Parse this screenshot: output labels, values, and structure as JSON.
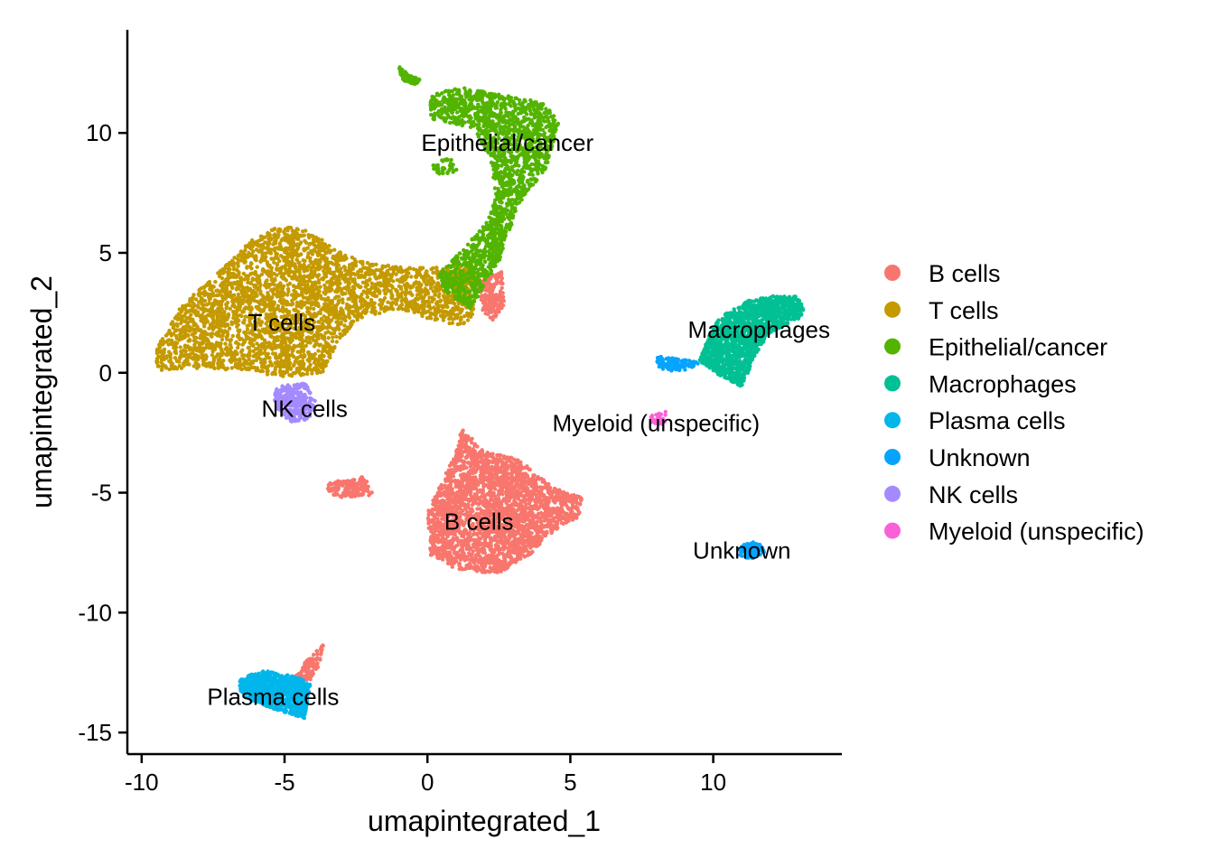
{
  "chart_data": {
    "type": "scatter",
    "title": "",
    "xlabel": "umapintegrated_1",
    "ylabel": "umapintegrated_2",
    "xlim": [
      -10.5,
      14.5
    ],
    "ylim": [
      -15.9,
      14.3
    ],
    "x_ticks": [
      {
        "value": -10,
        "label": "-10"
      },
      {
        "value": -5,
        "label": "-5"
      },
      {
        "value": 0,
        "label": "0"
      },
      {
        "value": 5,
        "label": "5"
      },
      {
        "value": 10,
        "label": "10"
      }
    ],
    "y_ticks": [
      {
        "value": 10,
        "label": "10"
      },
      {
        "value": 5,
        "label": "5"
      },
      {
        "value": 0,
        "label": "0"
      },
      {
        "value": -5,
        "label": "-5"
      },
      {
        "value": -10,
        "label": "-10"
      },
      {
        "value": -15,
        "label": "-15"
      }
    ],
    "grid": false,
    "legend_position": "right",
    "series": [
      {
        "name": "B cells",
        "color": "#F8766D",
        "regions": [
          {
            "shape": "polygon",
            "points": [
              [
                1.2,
                -2.3
              ],
              [
                2.0,
                -3.3
              ],
              [
                3.2,
                -3.6
              ],
              [
                4.4,
                -4.8
              ],
              [
                5.4,
                -5.2
              ],
              [
                5.3,
                -6.0
              ],
              [
                4.2,
                -6.8
              ],
              [
                3.6,
                -7.6
              ],
              [
                2.4,
                -8.4
              ],
              [
                1.0,
                -8.2
              ],
              [
                0.1,
                -7.6
              ],
              [
                0.0,
                -5.8
              ],
              [
                0.4,
                -4.8
              ],
              [
                1.0,
                -3.3
              ]
            ],
            "n": 2600
          },
          {
            "shape": "polygon",
            "points": [
              [
                -3.5,
                -4.6
              ],
              [
                -2.2,
                -4.3
              ],
              [
                -1.9,
                -5.1
              ],
              [
                -3.0,
                -5.2
              ],
              [
                -3.5,
                -5.0
              ]
            ],
            "n": 150
          },
          {
            "shape": "polygon",
            "points": [
              [
                1.8,
                4.0
              ],
              [
                2.6,
                4.2
              ],
              [
                2.7,
                2.8
              ],
              [
                2.3,
                2.2
              ],
              [
                1.9,
                2.6
              ]
            ],
            "n": 180
          },
          {
            "shape": "polygon",
            "points": [
              [
                -4.8,
                -12.8
              ],
              [
                -4.4,
                -12.2
              ],
              [
                -3.9,
                -11.6
              ],
              [
                -3.6,
                -11.3
              ],
              [
                -3.8,
                -12.2
              ],
              [
                -4.1,
                -12.8
              ],
              [
                -4.6,
                -13.1
              ]
            ],
            "n": 120
          }
        ]
      },
      {
        "name": "T cells",
        "color": "#C49A00",
        "regions": [
          {
            "shape": "polygon",
            "points": [
              [
                -9.6,
                0.8
              ],
              [
                -8.6,
                2.8
              ],
              [
                -7.3,
                4.2
              ],
              [
                -6.1,
                5.6
              ],
              [
                -5.2,
                6.1
              ],
              [
                -4.2,
                6.0
              ],
              [
                -3.2,
                5.1
              ],
              [
                -2.2,
                4.6
              ],
              [
                -0.8,
                4.4
              ],
              [
                0.6,
                4.4
              ],
              [
                1.4,
                4.5
              ],
              [
                1.8,
                3.4
              ],
              [
                1.6,
                2.3
              ],
              [
                1.2,
                2.0
              ],
              [
                0.4,
                2.1
              ],
              [
                -0.8,
                2.6
              ],
              [
                -2.2,
                2.4
              ],
              [
                -3.2,
                1.2
              ],
              [
                -3.6,
                0.0
              ],
              [
                -5.0,
                -0.2
              ],
              [
                -6.4,
                0.1
              ],
              [
                -8.4,
                0.2
              ],
              [
                -9.4,
                0.1
              ]
            ],
            "n": 3400
          }
        ]
      },
      {
        "name": "Epithelial/cancer",
        "color": "#53B400",
        "regions": [
          {
            "shape": "polygon",
            "points": [
              [
                0.1,
                11.6
              ],
              [
                1.2,
                11.9
              ],
              [
                2.5,
                11.6
              ],
              [
                4.0,
                11.3
              ],
              [
                4.6,
                10.5
              ],
              [
                4.2,
                8.6
              ],
              [
                3.3,
                7.2
              ],
              [
                2.8,
                5.7
              ],
              [
                2.5,
                4.6
              ],
              [
                2.1,
                3.9
              ],
              [
                1.5,
                2.6
              ],
              [
                0.6,
                3.4
              ],
              [
                0.4,
                4.1
              ],
              [
                1.2,
                5.1
              ],
              [
                2.1,
                6.3
              ],
              [
                2.4,
                7.4
              ],
              [
                2.2,
                8.9
              ],
              [
                1.6,
                10.2
              ],
              [
                0.1,
                10.6
              ]
            ],
            "n": 1900
          },
          {
            "shape": "polygon",
            "points": [
              [
                -1.0,
                12.8
              ],
              [
                -0.6,
                12.4
              ],
              [
                -0.2,
                12.2
              ],
              [
                -0.4,
                12.0
              ],
              [
                -0.9,
                12.2
              ]
            ],
            "n": 70
          },
          {
            "shape": "polygon",
            "points": [
              [
                0.1,
                8.6
              ],
              [
                0.8,
                9.1
              ],
              [
                1.1,
                8.4
              ],
              [
                0.5,
                8.2
              ]
            ],
            "n": 40
          }
        ]
      },
      {
        "name": "Macrophages",
        "color": "#00C094",
        "regions": [
          {
            "shape": "polygon",
            "points": [
              [
                10.5,
                2.5
              ],
              [
                11.2,
                3.0
              ],
              [
                12.1,
                3.2
              ],
              [
                13.0,
                3.2
              ],
              [
                13.2,
                2.4
              ],
              [
                12.6,
                2.0
              ],
              [
                12.0,
                1.7
              ],
              [
                11.5,
                0.8
              ],
              [
                11.0,
                -0.6
              ],
              [
                10.2,
                -0.1
              ],
              [
                9.5,
                0.5
              ],
              [
                9.8,
                1.4
              ],
              [
                10.2,
                2.3
              ]
            ],
            "n": 1500
          }
        ]
      },
      {
        "name": "Plasma cells",
        "color": "#00B6EB",
        "regions": [
          {
            "shape": "polygon",
            "points": [
              [
                -6.6,
                -12.8
              ],
              [
                -5.8,
                -12.4
              ],
              [
                -4.5,
                -12.7
              ],
              [
                -4.1,
                -13.0
              ],
              [
                -4.3,
                -14.4
              ],
              [
                -5.2,
                -14.1
              ],
              [
                -6.5,
                -13.5
              ]
            ],
            "n": 900
          }
        ]
      },
      {
        "name": "Unknown",
        "color": "#06A4FF",
        "regions": [
          {
            "shape": "polygon",
            "points": [
              [
                8.0,
                0.7
              ],
              [
                8.8,
                0.6
              ],
              [
                9.6,
                0.4
              ],
              [
                8.8,
                0.0
              ],
              [
                8.0,
                0.2
              ]
            ],
            "n": 120
          },
          {
            "shape": "polygon",
            "points": [
              [
                10.9,
                -7.2
              ],
              [
                11.6,
                -7.0
              ],
              [
                11.8,
                -7.5
              ],
              [
                11.3,
                -7.8
              ],
              [
                10.9,
                -7.6
              ]
            ],
            "n": 100
          }
        ]
      },
      {
        "name": "NK cells",
        "color": "#A58AFF",
        "regions": [
          {
            "shape": "polygon",
            "points": [
              [
                -5.3,
                -0.6
              ],
              [
                -4.3,
                -0.4
              ],
              [
                -3.9,
                -1.1
              ],
              [
                -4.1,
                -1.9
              ],
              [
                -4.8,
                -2.1
              ],
              [
                -5.2,
                -1.6
              ],
              [
                -5.4,
                -1.0
              ]
            ],
            "n": 300
          }
        ]
      },
      {
        "name": "Myeloid (unspecific)",
        "color": "#FB61D7",
        "regions": [
          {
            "shape": "polygon",
            "points": [
              [
                7.8,
                -1.8
              ],
              [
                8.4,
                -1.6
              ],
              [
                8.3,
                -2.2
              ],
              [
                7.8,
                -2.1
              ]
            ],
            "n": 35
          }
        ]
      }
    ],
    "cluster_labels": [
      {
        "text": "Epithelial/cancer",
        "x": 2.8,
        "y": 9.6
      },
      {
        "text": "T cells",
        "x": -5.1,
        "y": 2.1
      },
      {
        "text": "Macrophages",
        "x": 11.6,
        "y": 1.8
      },
      {
        "text": "NK cells",
        "x": -4.3,
        "y": -1.5
      },
      {
        "text": "Myeloid (unspecific)",
        "x": 8.0,
        "y": -2.1
      },
      {
        "text": "B cells",
        "x": 1.8,
        "y": -6.2
      },
      {
        "text": "Unknown",
        "x": 11.0,
        "y": -7.4
      },
      {
        "text": "Plasma cells",
        "x": -5.4,
        "y": -13.5
      }
    ]
  }
}
